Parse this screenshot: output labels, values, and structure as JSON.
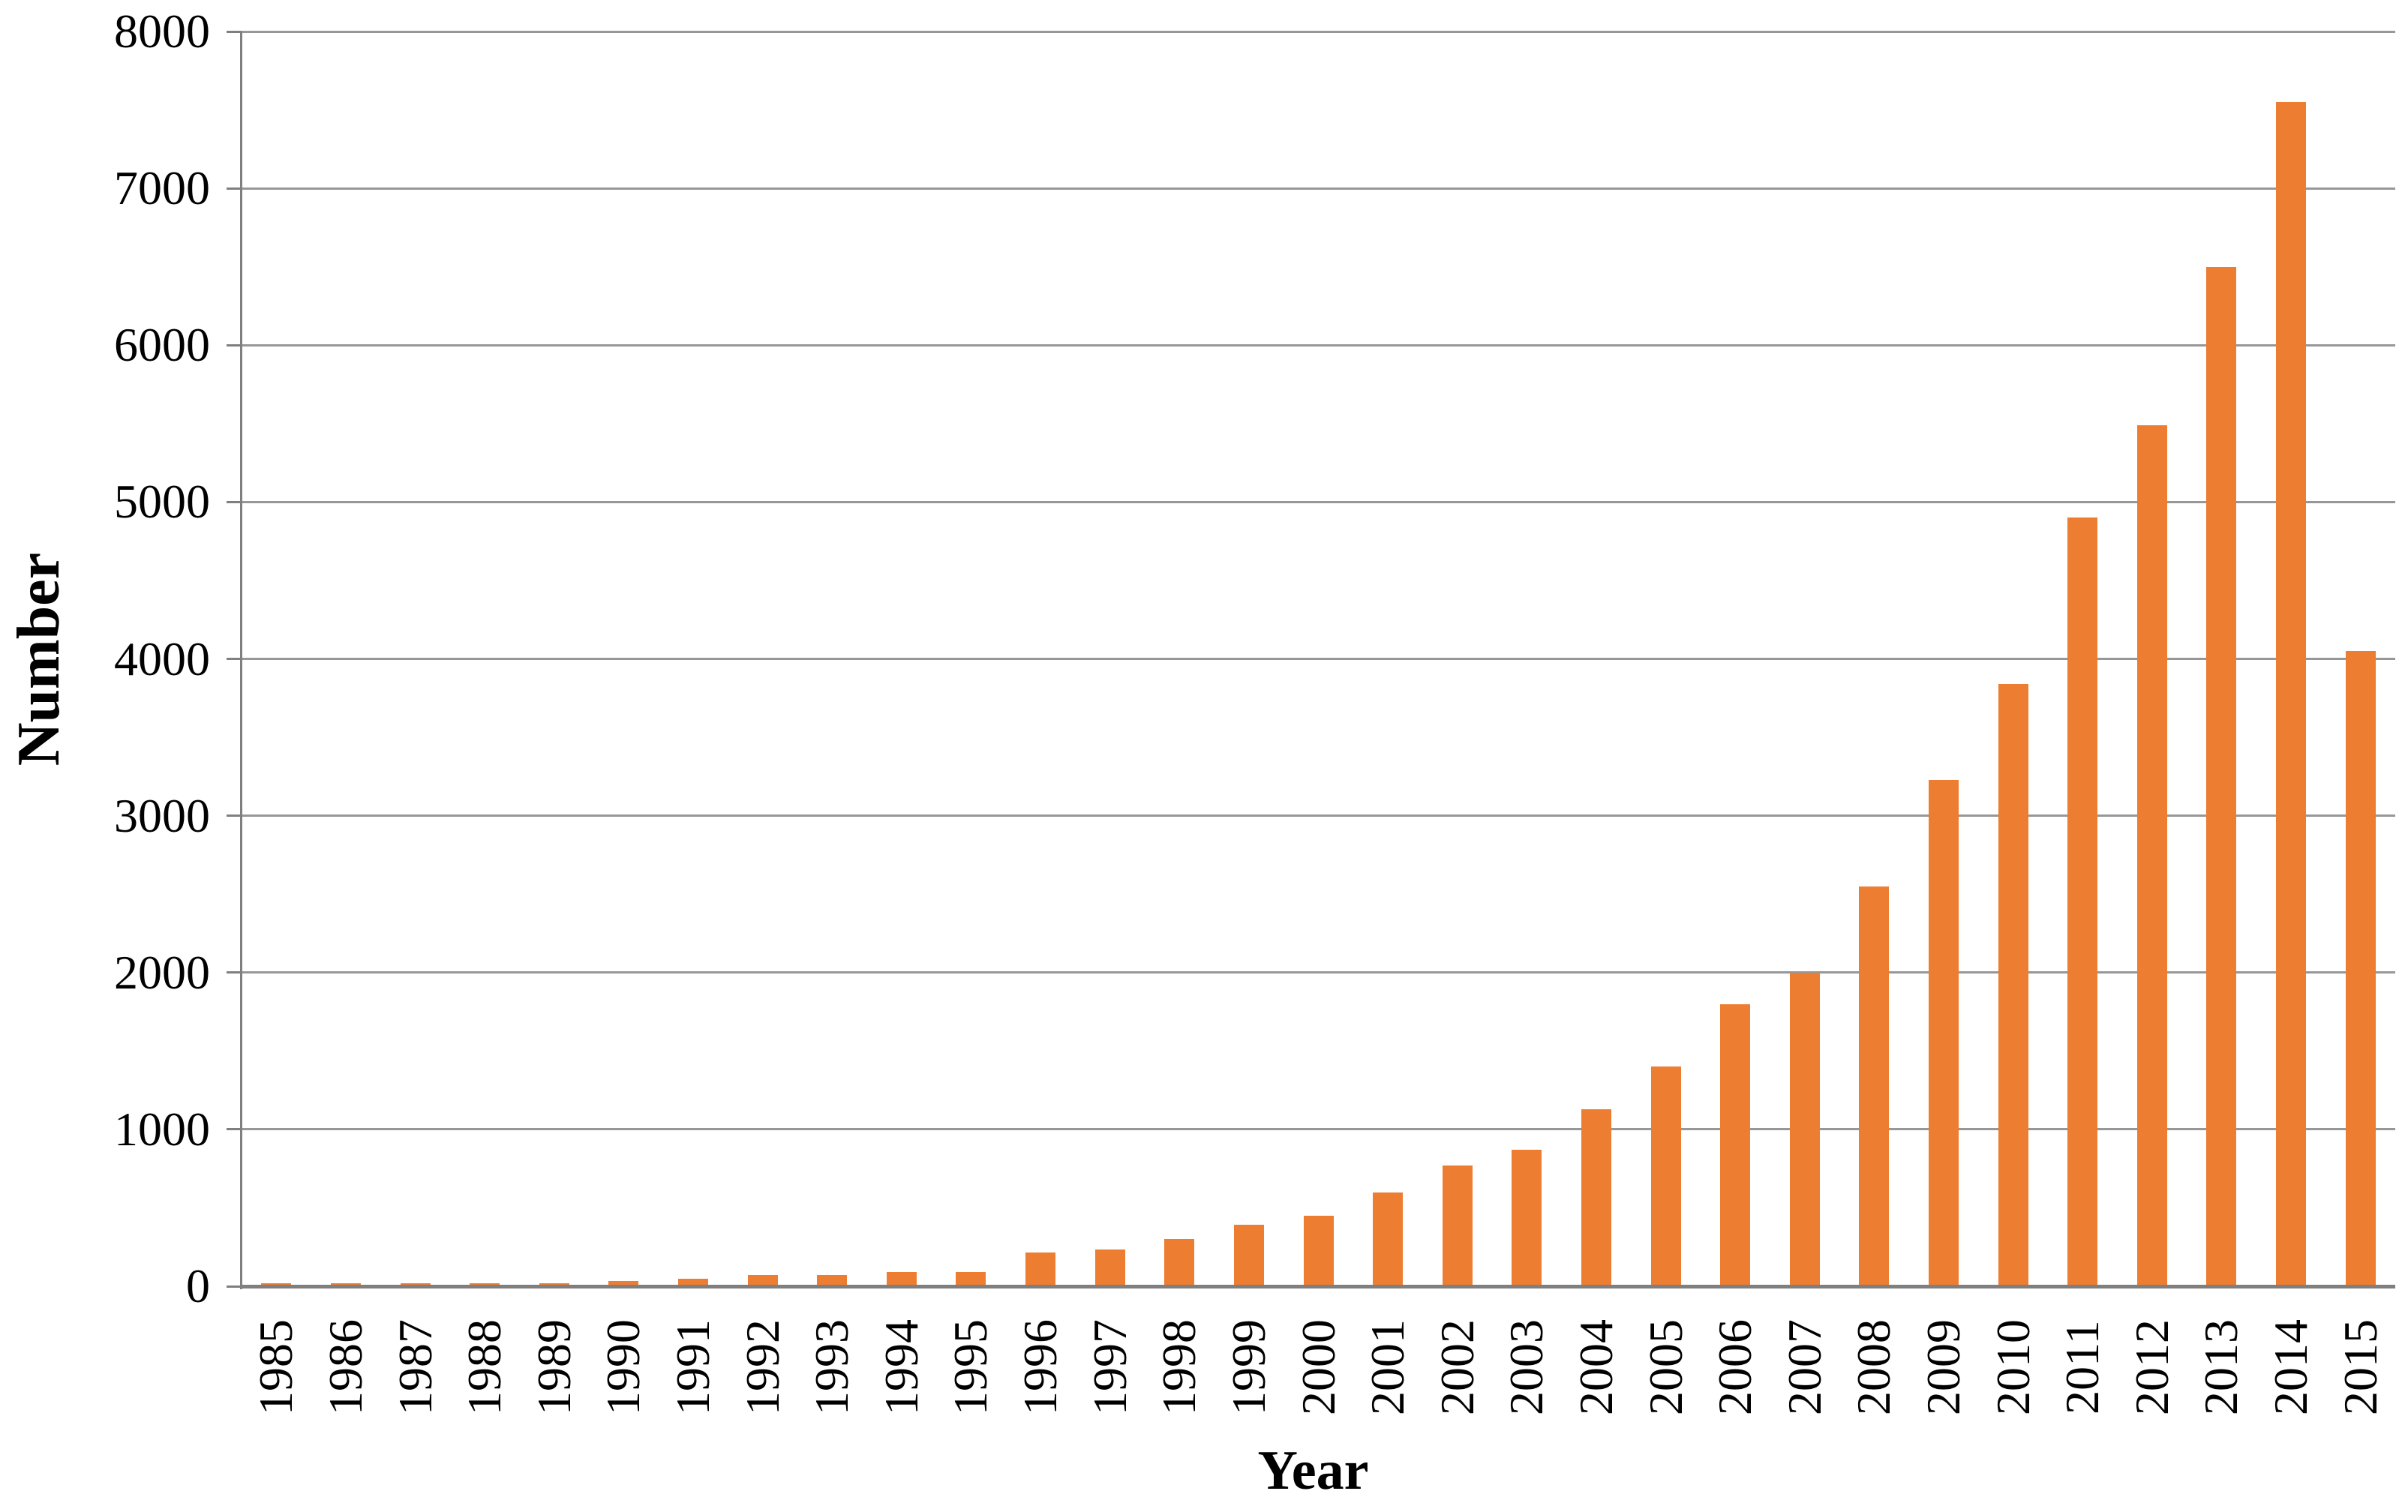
{
  "chart_data": {
    "type": "bar",
    "title": "",
    "xlabel": "Year",
    "ylabel": "Number",
    "categories": [
      "1985",
      "1986",
      "1987",
      "1988",
      "1989",
      "1990",
      "1991",
      "1992",
      "1993",
      "1994",
      "1995",
      "1996",
      "1997",
      "1998",
      "1999",
      "2000",
      "2001",
      "2002",
      "2003",
      "2004",
      "2005",
      "2006",
      "2007",
      "2008",
      "2009",
      "2010",
      "2011",
      "2012",
      "2013",
      "2014",
      "2015"
    ],
    "values": [
      20,
      20,
      20,
      20,
      20,
      35,
      50,
      70,
      70,
      90,
      90,
      215,
      235,
      300,
      390,
      450,
      600,
      770,
      870,
      1130,
      1400,
      1800,
      2000,
      2550,
      3230,
      3840,
      4900,
      5490,
      6500,
      7550,
      4050
    ],
    "ylim": [
      0,
      8000
    ],
    "yticks": [
      0,
      1000,
      2000,
      3000,
      4000,
      5000,
      6000,
      7000,
      8000
    ],
    "grid": "horizontal gridlines every 1000, drawn behind bars",
    "legend": "none",
    "colors": {
      "bar": "#ED7D31",
      "gridline": "#979797",
      "axis": "#7F7F7F",
      "text": "#000000",
      "background": "#FFFFFF"
    }
  }
}
